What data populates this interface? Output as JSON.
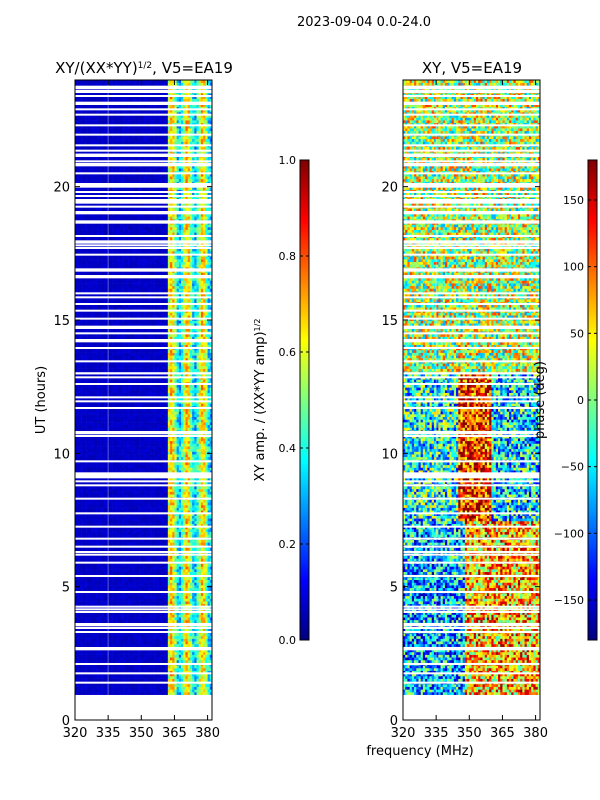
{
  "suptitle": "2023-09-04 0.0-24.0",
  "chart_data": [
    {
      "type": "heatmap",
      "title": "XY/(XX*YY)^{1/2}, V5=EA19",
      "title_main": "XY/(XX*YY)",
      "title_sup": "1/2",
      "title_tail": ", V5=EA19",
      "xlabel": "",
      "ylabel": "UT (hours)",
      "xlim": [
        320,
        382
      ],
      "ylim": [
        0,
        24
      ],
      "xticks": [
        320,
        335,
        350,
        365,
        380
      ],
      "yticks": [
        0,
        5,
        10,
        15,
        20
      ],
      "data_time_range": [
        0.95,
        24.0
      ],
      "colorbar": {
        "label": "XY amp. / (XX*YY amp)^{1/2}",
        "label_main": "XY amp. / (XX*YY amp)",
        "label_sup": "1/2",
        "range": [
          0.0,
          1.0
        ],
        "ticks": [
          "0.0",
          "0.2",
          "0.4",
          "0.6",
          "0.8",
          "1.0"
        ],
        "colormap": "jet"
      }
    },
    {
      "type": "heatmap",
      "title": "XY, V5=EA19",
      "xlabel": "frequency (MHz)",
      "ylabel": "",
      "xlim": [
        320,
        382
      ],
      "ylim": [
        0,
        24
      ],
      "xticks": [
        320,
        335,
        350,
        365,
        380
      ],
      "yticks": [
        0,
        5,
        10,
        15,
        20
      ],
      "data_time_range": [
        0.95,
        24.0
      ],
      "colorbar": {
        "label": "phase (deg)",
        "range": [
          -180,
          180
        ],
        "ticks": [
          "150",
          "100",
          "50",
          "0",
          "−50",
          "−100",
          "−150"
        ],
        "tick_values": [
          150,
          100,
          50,
          0,
          -50,
          -100,
          -150
        ],
        "colormap": "jet"
      }
    }
  ]
}
